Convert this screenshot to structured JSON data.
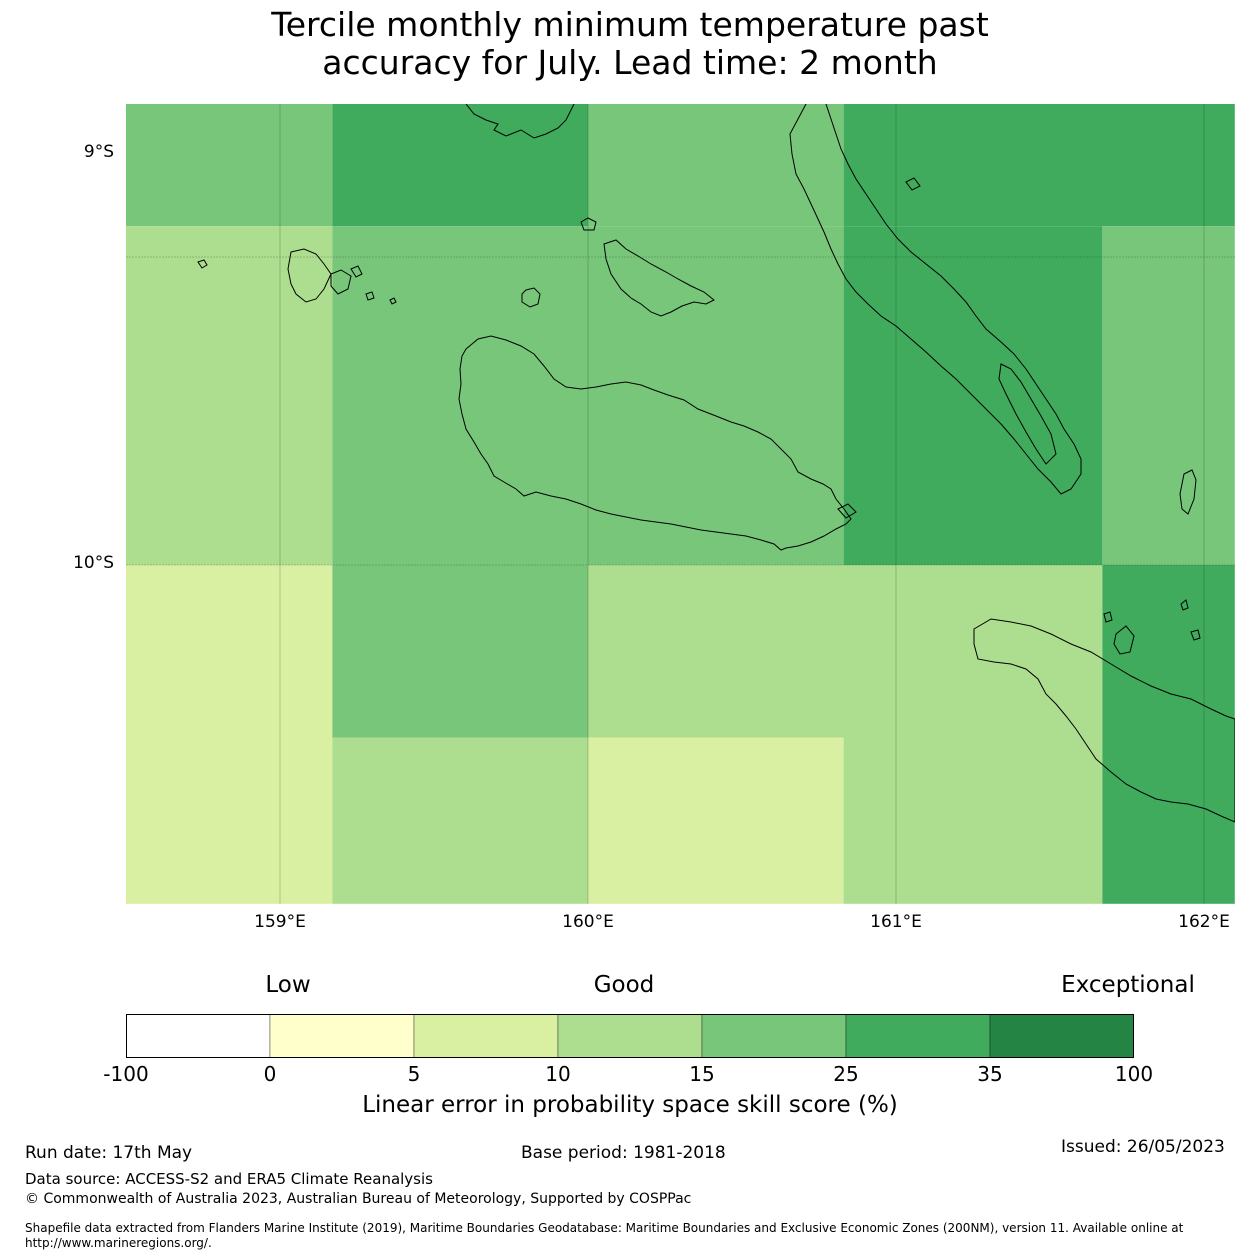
{
  "title_line1": "Tercile monthly minimum temperature past",
  "title_line2": "accuracy for July. Lead time: 2 month",
  "map": {
    "lat_labels": [
      "9°S",
      "10°S"
    ],
    "lon_labels": [
      "159°E",
      "160°E",
      "161°E",
      "162°E"
    ],
    "colors": {
      "c0_5": "#ffffcc",
      "c5_10": "#d9f0a3",
      "c10_15": "#addd8e",
      "c15_25": "#78c679",
      "c25_35": "#41ab5d",
      "c35_100": "#238443"
    },
    "grid_cells": [
      {
        "lon": [
          158.5,
          159.17
        ],
        "lat": [
          -8.5,
          -8.9
        ],
        "category": "15-25"
      },
      {
        "lon": [
          159.17,
          160.0
        ],
        "lat": [
          -8.5,
          -8.9
        ],
        "category": "25-35"
      },
      {
        "lon": [
          160.0,
          160.83
        ],
        "lat": [
          -8.5,
          -8.9
        ],
        "category": "15-25"
      },
      {
        "lon": [
          160.83,
          162.1
        ],
        "lat": [
          -8.5,
          -8.9
        ],
        "category": "25-35"
      },
      {
        "lon": [
          158.5,
          159.17
        ],
        "lat": [
          -8.9,
          -10.0
        ],
        "category": "10-15"
      },
      {
        "lon": [
          159.17,
          160.83
        ],
        "lat": [
          -8.9,
          -10.0
        ],
        "category": "15-25"
      },
      {
        "lon": [
          160.83,
          161.67
        ],
        "lat": [
          -8.9,
          -10.0
        ],
        "category": "25-35"
      },
      {
        "lon": [
          161.67,
          162.1
        ],
        "lat": [
          -8.9,
          -10.0
        ],
        "category": "15-25"
      },
      {
        "lon": [
          158.5,
          159.17
        ],
        "lat": [
          -10.0,
          -11.1
        ],
        "category": "5-10"
      },
      {
        "lon": [
          159.17,
          160.0
        ],
        "lat": [
          -10.0,
          -10.56
        ],
        "category": "15-25"
      },
      {
        "lon": [
          160.0,
          161.67
        ],
        "lat": [
          -10.0,
          -10.56
        ],
        "category": "10-15"
      },
      {
        "lon": [
          159.17,
          160.0
        ],
        "lat": [
          -10.56,
          -11.1
        ],
        "category": "10-15"
      },
      {
        "lon": [
          160.0,
          160.83
        ],
        "lat": [
          -10.56,
          -11.1
        ],
        "category": "5-10"
      },
      {
        "lon": [
          160.83,
          161.67
        ],
        "lat": [
          -10.56,
          -11.1
        ],
        "category": "10-15"
      },
      {
        "lon": [
          161.67,
          162.1
        ],
        "lat": [
          -10.0,
          -11.1
        ],
        "category": "25-35"
      }
    ]
  },
  "legend": {
    "categories": [
      "Low",
      "Good",
      "Exceptional"
    ],
    "ticks": [
      "-100",
      "0",
      "5",
      "10",
      "15",
      "25",
      "35",
      "100"
    ],
    "colors": [
      "#ffffff",
      "#ffffcc",
      "#d9f0a3",
      "#addd8e",
      "#78c679",
      "#41ab5d",
      "#238443"
    ],
    "label": "Linear error in probability space skill score (%)"
  },
  "footer": {
    "run_date": "Run date: 17th May",
    "base_period": "Base period: 1981-2018",
    "issued": "Issued: 26/05/2023",
    "data_source": "Data source: ACCESS-S2 and ERA5 Climate Reanalysis",
    "copyright": "© Commonwealth of Australia 2023, Australian Bureau of Meteorology, Supported by COSPPac",
    "shapefile": "Shapefile data extracted from Flanders Marine Institute (2019), Maritime Boundaries Geodatabase: Maritime Boundaries and Exclusive Economic Zones (200NM), version 11. Available online at http://www.marineregions.org/."
  }
}
